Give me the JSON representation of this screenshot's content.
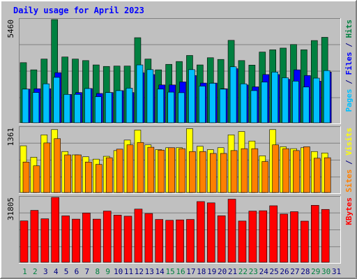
{
  "chart_data": [
    {
      "type": "bar",
      "title": "Daily usage for April 2023",
      "ylabel_parts": [
        {
          "text": "Pages",
          "color": "#00c0ff"
        },
        {
          "text": " / ",
          "color": "#000080"
        },
        {
          "text": "Files",
          "color": "#0000ff"
        },
        {
          "text": " / ",
          "color": "#000080"
        },
        {
          "text": "Hits",
          "color": "#008040"
        }
      ],
      "ymax_label": "5460",
      "ylim": [
        0,
        5460
      ],
      "categories": [
        "1",
        "2",
        "3",
        "4",
        "5",
        "6",
        "7",
        "8",
        "9",
        "10",
        "11",
        "12",
        "13",
        "14",
        "15",
        "16",
        "17",
        "18",
        "19",
        "20",
        "21",
        "22",
        "23",
        "24",
        "25",
        "26",
        "27",
        "28",
        "29",
        "30",
        "31"
      ],
      "weekend_days": [
        1,
        2,
        8,
        9,
        15,
        16,
        22,
        23,
        29,
        30
      ],
      "series": [
        {
          "name": "Hits",
          "color": "#008040",
          "values": [
            3180,
            2800,
            3370,
            5460,
            3480,
            3370,
            3290,
            3060,
            2980,
            3000,
            3000,
            4500,
            3370,
            2800,
            3090,
            3240,
            3560,
            3060,
            3440,
            3350,
            4360,
            3290,
            3050,
            3740,
            3860,
            3950,
            4140,
            3860,
            4350,
            4520,
            0
          ]
        },
        {
          "name": "Files",
          "color": "#0000ff",
          "values": [
            1780,
            1800,
            1800,
            2650,
            1500,
            1600,
            1810,
            1550,
            1600,
            1700,
            1600,
            2650,
            2550,
            2000,
            2000,
            2160,
            2500,
            2100,
            2100,
            1800,
            2860,
            2000,
            1900,
            2550,
            2550,
            2300,
            2800,
            2500,
            2200,
            2680,
            0
          ]
        },
        {
          "name": "Pages",
          "color": "#00c0ff",
          "values": [
            1780,
            1600,
            2060,
            2400,
            1500,
            1500,
            1810,
            1380,
            1600,
            1700,
            1830,
            3060,
            2810,
            1780,
            1620,
            1590,
            2810,
            1940,
            2090,
            1780,
            2960,
            2060,
            1700,
            2150,
            2680,
            2380,
            2200,
            1890,
            2360,
            2760,
            0
          ]
        }
      ]
    },
    {
      "type": "bar",
      "ylabel_parts": [
        {
          "text": "Sites",
          "color": "#ff8000"
        },
        {
          "text": " / ",
          "color": "#000080"
        },
        {
          "text": "Visits",
          "color": "#ffff00"
        }
      ],
      "ymax_label": "1361",
      "ylim": [
        0,
        1361
      ],
      "categories": [
        "1",
        "2",
        "3",
        "4",
        "5",
        "6",
        "7",
        "8",
        "9",
        "10",
        "11",
        "12",
        "13",
        "14",
        "15",
        "16",
        "17",
        "18",
        "19",
        "20",
        "21",
        "22",
        "23",
        "24",
        "25",
        "26",
        "27",
        "28",
        "29",
        "30",
        "31"
      ],
      "series": [
        {
          "name": "Visits",
          "color": "#ffff00",
          "values": [
            980,
            740,
            1210,
            1320,
            860,
            790,
            750,
            700,
            760,
            880,
            1100,
            1310,
            1000,
            900,
            940,
            940,
            1340,
            970,
            900,
            940,
            1210,
            1280,
            1080,
            770,
            1320,
            960,
            920,
            940,
            860,
            830,
            0
          ]
        },
        {
          "name": "Sites",
          "color": "#ff8000",
          "values": [
            640,
            560,
            1040,
            1130,
            790,
            790,
            640,
            590,
            730,
            910,
            1000,
            1050,
            950,
            890,
            940,
            920,
            860,
            860,
            820,
            820,
            880,
            920,
            920,
            650,
            1000,
            920,
            880,
            960,
            720,
            730,
            0
          ]
        }
      ]
    },
    {
      "type": "bar",
      "ylabel_parts": [
        {
          "text": "KBytes",
          "color": "#ff0000"
        }
      ],
      "ymax_label": "31805",
      "ylim": [
        0,
        31805
      ],
      "categories": [
        "1",
        "2",
        "3",
        "4",
        "5",
        "6",
        "7",
        "8",
        "9",
        "10",
        "11",
        "12",
        "13",
        "14",
        "15",
        "16",
        "17",
        "18",
        "19",
        "20",
        "21",
        "22",
        "23",
        "24",
        "25",
        "26",
        "27",
        "28",
        "29",
        "30",
        "31"
      ],
      "series": [
        {
          "name": "KBytes",
          "color": "#ff0000",
          "values": [
            20280,
            25450,
            21320,
            31810,
            22750,
            21160,
            24160,
            21160,
            25100,
            23110,
            22600,
            26070,
            23910,
            21000,
            20580,
            20790,
            21000,
            29760,
            29130,
            22800,
            30940,
            20220,
            25100,
            25270,
            27710,
            23630,
            24810,
            20180,
            27920,
            25910,
            0
          ]
        }
      ]
    }
  ]
}
